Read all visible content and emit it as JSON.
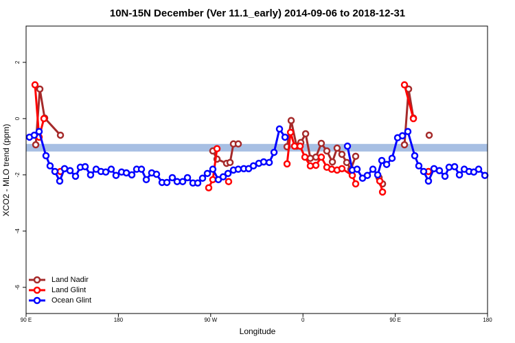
{
  "chart_data": {
    "type": "line",
    "title": "10N-15N December (Ver 11.1_early)   2014-09-06 to 2018-12-31",
    "x_label": "Longitude",
    "y_label": "XCO2 - MLO trend (ppm)",
    "xlim": [
      90,
      540
    ],
    "ylim": [
      -6.93,
      3.29
    ],
    "xticks": [
      {
        "value": 90,
        "label": "90 E"
      },
      180,
      {
        "value": 270,
        "label": "90 W"
      },
      {
        "value": 360,
        "label": "0"
      },
      {
        "value": 450,
        "label": "90 E"
      },
      {
        "value": 540,
        "label": "180"
      }
    ],
    "yticks": [
      -6,
      -4,
      -2,
      0,
      2
    ],
    "reference_band": {
      "range": [
        -1.17,
        -0.9
      ],
      "color": "#a7bfe3"
    },
    "legend": "bottom-left",
    "series": [
      {
        "name": "Land Nadir",
        "color": "#a52a2a",
        "x": [
          99.4,
          103.4,
          108.1,
          123.5,
          null,
          272.1,
          276.2,
          285.5,
          288.9,
          292.2,
          296.9,
          null,
          344.5,
          348.5,
          353.8,
          357.9,
          362.6,
          367.2,
          372.6,
          377.9,
          383.3,
          388.7,
          393.3,
          398.0,
          402.7,
          406.7,
          411.4,
          null,
          434.2,
          437.6,
          null,
          459.0,
          463.0,
          467.7,
          null,
          483.1
        ],
        "values": [
          -0.93,
          1.05,
          0.02,
          -0.59,
          null,
          -1.15,
          -1.44,
          -1.59,
          -1.56,
          -0.9,
          -0.9,
          null,
          -1.0,
          -0.07,
          -0.98,
          -0.85,
          -0.54,
          -1.41,
          -1.37,
          -0.88,
          -1.15,
          -1.54,
          -1.05,
          -1.27,
          -1.56,
          -1.8,
          -1.34,
          null,
          -2.1,
          -2.32,
          null,
          -0.93,
          1.05,
          0.02,
          null,
          -0.59
        ]
      },
      {
        "name": "Land Glint",
        "color": "#ff0000",
        "x": [
          98.7,
          102.7,
          107.4,
          null,
          123.5,
          null,
          268.1,
          272.1,
          276.2,
          null,
          287.5,
          null,
          344.5,
          347.9,
          351.8,
          357.2,
          361.9,
          367.2,
          372.6,
          377.9,
          383.3,
          388.0,
          393.3,
          398.0,
          408.1,
          411.4,
          null,
          434.9,
          437.6,
          null,
          459.0,
          467.7,
          null,
          482.4
        ],
        "values": [
          1.2,
          -0.66,
          0.0,
          null,
          -1.88,
          null,
          -2.46,
          -2.17,
          -1.07,
          null,
          -2.24,
          null,
          -1.61,
          -0.49,
          -0.98,
          -0.98,
          -1.37,
          -1.68,
          -1.66,
          -1.37,
          -1.73,
          -1.8,
          -1.83,
          -1.78,
          -2.02,
          -2.32,
          null,
          -2.22,
          -2.61,
          null,
          1.2,
          0.0,
          null,
          -1.88
        ]
      },
      {
        "name": "Ocean Glint",
        "color": "#0000ff",
        "x": [
          93.3,
          98.0,
          102.7,
          109.4,
          113.4,
          118.1,
          122.8,
          127.5,
          132.9,
          138.2,
          142.9,
          147.6,
          152.9,
          158.3,
          163.0,
          167.7,
          173.0,
          177.7,
          183.1,
          187.8,
          193.1,
          197.8,
          202.5,
          207.2,
          212.5,
          217.2,
          222.6,
          227.3,
          232.6,
          237.3,
          242.7,
          247.4,
          252.7,
          257.4,
          262.1,
          266.8,
          272.1,
          277.5,
          282.2,
          286.9,
          292.2,
          296.9,
          302.3,
          307.0,
          311.7,
          317.0,
          321.7,
          327.1,
          331.8,
          337.1,
          342.5,
          null,
          403.4,
          408.1,
          412.8,
          418.1,
          422.8,
          428.2,
          432.9,
          436.9,
          441.6,
          446.9,
          452.3,
          457.0,
          462.3,
          469.0,
          473.0,
          477.7,
          482.4,
          487.8,
          493.1,
          498.5,
          502.5,
          507.9,
          512.6,
          517.3,
          522.0,
          526.6,
          531.3,
          537.4
        ],
        "values": [
          -0.66,
          -0.59,
          -0.46,
          -1.32,
          -1.68,
          -1.88,
          -2.22,
          -1.78,
          -1.85,
          -2.05,
          -1.73,
          -1.71,
          -2.0,
          -1.8,
          -1.88,
          -1.9,
          -1.8,
          -2.02,
          -1.9,
          -1.93,
          -2.0,
          -1.8,
          -1.8,
          -2.17,
          -1.93,
          -1.98,
          -2.27,
          -2.27,
          -2.1,
          -2.24,
          -2.24,
          -2.1,
          -2.29,
          -2.29,
          -2.12,
          -1.95,
          -1.8,
          -2.17,
          -2.07,
          -1.95,
          -1.83,
          -1.8,
          -1.78,
          -1.78,
          -1.68,
          -1.59,
          -1.54,
          -1.56,
          -1.2,
          -0.37,
          -0.66,
          null,
          -0.98,
          -1.83,
          -1.8,
          -2.12,
          -2.02,
          -1.8,
          -2.0,
          -1.49,
          -1.63,
          -1.41,
          -0.68,
          -0.61,
          -0.46,
          -1.32,
          -1.68,
          -1.88,
          -2.22,
          -1.78,
          -1.85,
          -2.05,
          -1.73,
          -1.71,
          -2.0,
          -1.8,
          -1.88,
          -1.9,
          -1.8,
          -2.02
        ]
      }
    ]
  }
}
